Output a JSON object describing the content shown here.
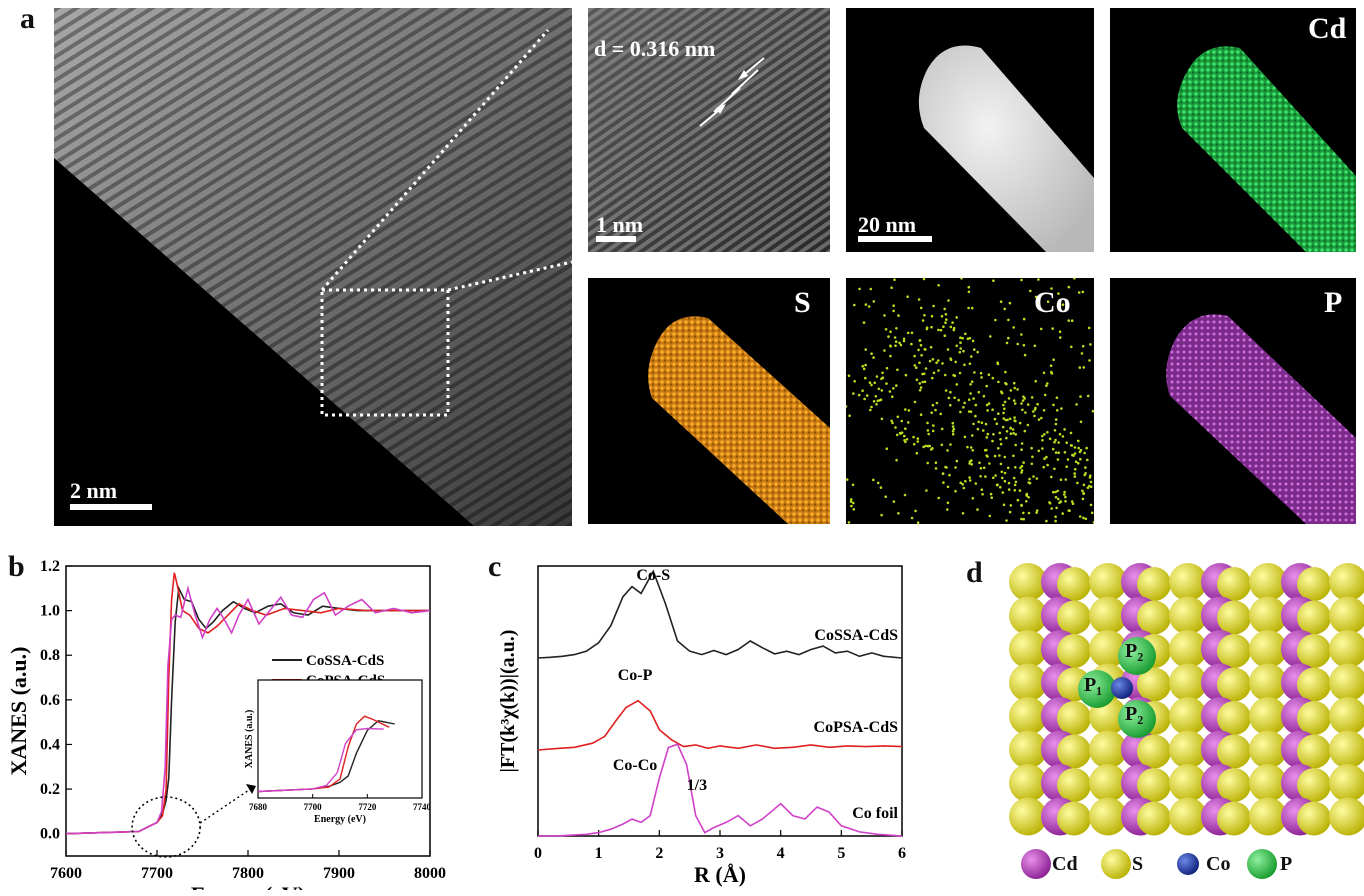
{
  "panel_a": {
    "letter": "a",
    "main_scale": "2 nm",
    "hrtem": {
      "spacing_label": "d = 0.316 nm",
      "scale": "1 nm"
    },
    "haadf": {
      "scale": "20 nm"
    },
    "maps": [
      {
        "element": "Cd",
        "color": "#2ecc52"
      },
      {
        "element": "S",
        "color": "#f0a020"
      },
      {
        "element": "Co",
        "color": "#b8e020"
      },
      {
        "element": "P",
        "color": "#c060d0"
      }
    ]
  },
  "panel_b": {
    "letter": "b"
  },
  "panel_c": {
    "letter": "c"
  },
  "panel_d": {
    "letter": "d",
    "site_labels": [
      "P₂",
      "P₁",
      "P₂"
    ],
    "legend": [
      {
        "label": "Cd",
        "color": "#b03cb8"
      },
      {
        "label": "S",
        "color": "#e8e020"
      },
      {
        "label": "Co",
        "color": "#1f3aa8"
      },
      {
        "label": "P",
        "color": "#2fc04a"
      }
    ]
  },
  "chart_data": [
    {
      "type": "line",
      "panel": "b",
      "xlabel": "Energy (eV)",
      "ylabel": "XANES (a.u.)",
      "xlim": [
        7600,
        8000
      ],
      "ylim": [
        -0.1,
        1.2
      ],
      "xticks": [
        7600,
        7700,
        7800,
        7900,
        8000
      ],
      "yticks": [
        0.0,
        0.2,
        0.4,
        0.6,
        0.8,
        1.0,
        1.2
      ],
      "legend_position": "right-middle",
      "series": [
        {
          "name": "CoSSA-CdS",
          "color": "#222222",
          "x": [
            7600,
            7680,
            7700,
            7706,
            7710,
            7713,
            7716,
            7720,
            7724,
            7730,
            7738,
            7746,
            7754,
            7762,
            7772,
            7784,
            7796,
            7808,
            7822,
            7836,
            7850,
            7866,
            7882,
            7900,
            7920,
            7950,
            7980,
            8000
          ],
          "y": [
            0.0,
            0.01,
            0.05,
            0.09,
            0.15,
            0.25,
            0.6,
            0.95,
            1.1,
            1.05,
            1.04,
            0.96,
            0.92,
            0.95,
            1.0,
            1.04,
            1.01,
            0.99,
            1.02,
            1.03,
            0.99,
            0.98,
            1.02,
            1.01,
            1.0,
            1.0,
            1.0,
            1.0
          ]
        },
        {
          "name": "CoPSA-CdS",
          "color": "#e02020",
          "x": [
            7600,
            7680,
            7700,
            7706,
            7710,
            7713,
            7716,
            7719,
            7722,
            7728,
            7736,
            7746,
            7756,
            7766,
            7778,
            7790,
            7805,
            7820,
            7840,
            7860,
            7880,
            7900,
            7930,
            7960,
            8000
          ],
          "y": [
            0.0,
            0.01,
            0.05,
            0.08,
            0.2,
            0.7,
            1.05,
            1.17,
            1.12,
            1.0,
            0.98,
            0.92,
            0.9,
            0.93,
            0.98,
            1.03,
            1.0,
            0.98,
            1.01,
            1.0,
            0.99,
            1.01,
            1.0,
            1.0,
            1.0
          ]
        },
        {
          "name": "Co foil",
          "color": "#d040c8",
          "x": [
            7600,
            7680,
            7700,
            7705,
            7709,
            7712,
            7716,
            7720,
            7726,
            7734,
            7742,
            7750,
            7758,
            7766,
            7774,
            7782,
            7790,
            7800,
            7812,
            7824,
            7836,
            7848,
            7860,
            7872,
            7884,
            7896,
            7910,
            7925,
            7940,
            7960,
            7980,
            8000
          ],
          "y": [
            0.0,
            0.01,
            0.05,
            0.1,
            0.3,
            0.75,
            0.96,
            0.98,
            0.97,
            1.1,
            0.98,
            0.88,
            0.96,
            1.01,
            0.96,
            0.9,
            0.98,
            1.05,
            0.94,
            1.0,
            1.06,
            0.98,
            0.97,
            1.05,
            1.08,
            0.98,
            1.02,
            1.05,
            0.99,
            1.01,
            0.99,
            1.0
          ]
        }
      ],
      "inset": {
        "xlabel": "Energy (eV)",
        "ylabel": "XANES (a.u.)",
        "xlim": [
          7680,
          7740
        ],
        "xticks": [
          7680,
          7700,
          7720,
          7740
        ]
      }
    },
    {
      "type": "line",
      "panel": "c",
      "xlabel": "R (Å)",
      "ylabel": "|FT(k³χ(k))|(a.u.)",
      "xlim": [
        0,
        6
      ],
      "xticks": [
        0,
        1,
        2,
        3,
        4,
        5,
        6
      ],
      "annotations": [
        "Co-S",
        "Co-P",
        "Co-Co",
        "1/3"
      ],
      "series": [
        {
          "name": "CoSSA-CdS",
          "color": "#222222",
          "x": [
            0,
            0.2,
            0.4,
            0.6,
            0.8,
            1.0,
            1.2,
            1.4,
            1.55,
            1.7,
            1.9,
            2.1,
            2.3,
            2.5,
            2.7,
            2.9,
            3.1,
            3.3,
            3.5,
            3.7,
            3.9,
            4.1,
            4.3,
            4.5,
            4.7,
            4.9,
            5.1,
            5.3,
            5.5,
            5.7,
            6.0
          ],
          "y": [
            0.0,
            0.02,
            0.05,
            0.1,
            0.2,
            0.45,
            0.95,
            1.8,
            2.1,
            1.9,
            2.55,
            1.6,
            0.5,
            0.2,
            0.1,
            0.22,
            0.1,
            0.25,
            0.5,
            0.3,
            0.12,
            0.2,
            0.1,
            0.25,
            0.35,
            0.15,
            0.2,
            0.05,
            0.15,
            0.05,
            0.0
          ]
        },
        {
          "name": "CoPSA-CdS",
          "color": "#e02020",
          "x": [
            0,
            0.3,
            0.6,
            0.9,
            1.1,
            1.3,
            1.45,
            1.65,
            1.85,
            2.0,
            2.2,
            2.4,
            2.6,
            2.8,
            3.0,
            3.3,
            3.6,
            3.9,
            4.2,
            4.5,
            4.8,
            5.1,
            5.4,
            5.7,
            6.0
          ],
          "y": [
            0.0,
            0.04,
            0.08,
            0.2,
            0.4,
            0.9,
            1.25,
            1.45,
            1.15,
            0.6,
            0.3,
            0.1,
            0.15,
            0.05,
            0.12,
            0.05,
            0.15,
            0.05,
            0.08,
            0.15,
            0.08,
            0.12,
            0.1,
            0.12,
            0.1
          ]
        },
        {
          "name": "Co foil",
          "color": "#d040c8",
          "x": [
            0,
            0.4,
            0.8,
            1.0,
            1.2,
            1.4,
            1.55,
            1.7,
            1.85,
            2.0,
            2.15,
            2.3,
            2.45,
            2.6,
            2.75,
            2.9,
            3.1,
            3.3,
            3.5,
            3.7,
            3.9,
            4.0,
            4.2,
            4.4,
            4.6,
            4.8,
            5.0,
            5.3,
            5.6,
            6.0
          ],
          "y": [
            0.0,
            0.01,
            0.05,
            0.1,
            0.2,
            0.35,
            0.5,
            0.4,
            0.6,
            1.7,
            2.6,
            2.7,
            2.1,
            0.6,
            0.1,
            0.25,
            0.4,
            0.6,
            0.3,
            0.5,
            0.8,
            0.95,
            0.6,
            0.5,
            0.85,
            0.7,
            0.3,
            0.12,
            0.05,
            0.0
          ]
        }
      ]
    }
  ]
}
